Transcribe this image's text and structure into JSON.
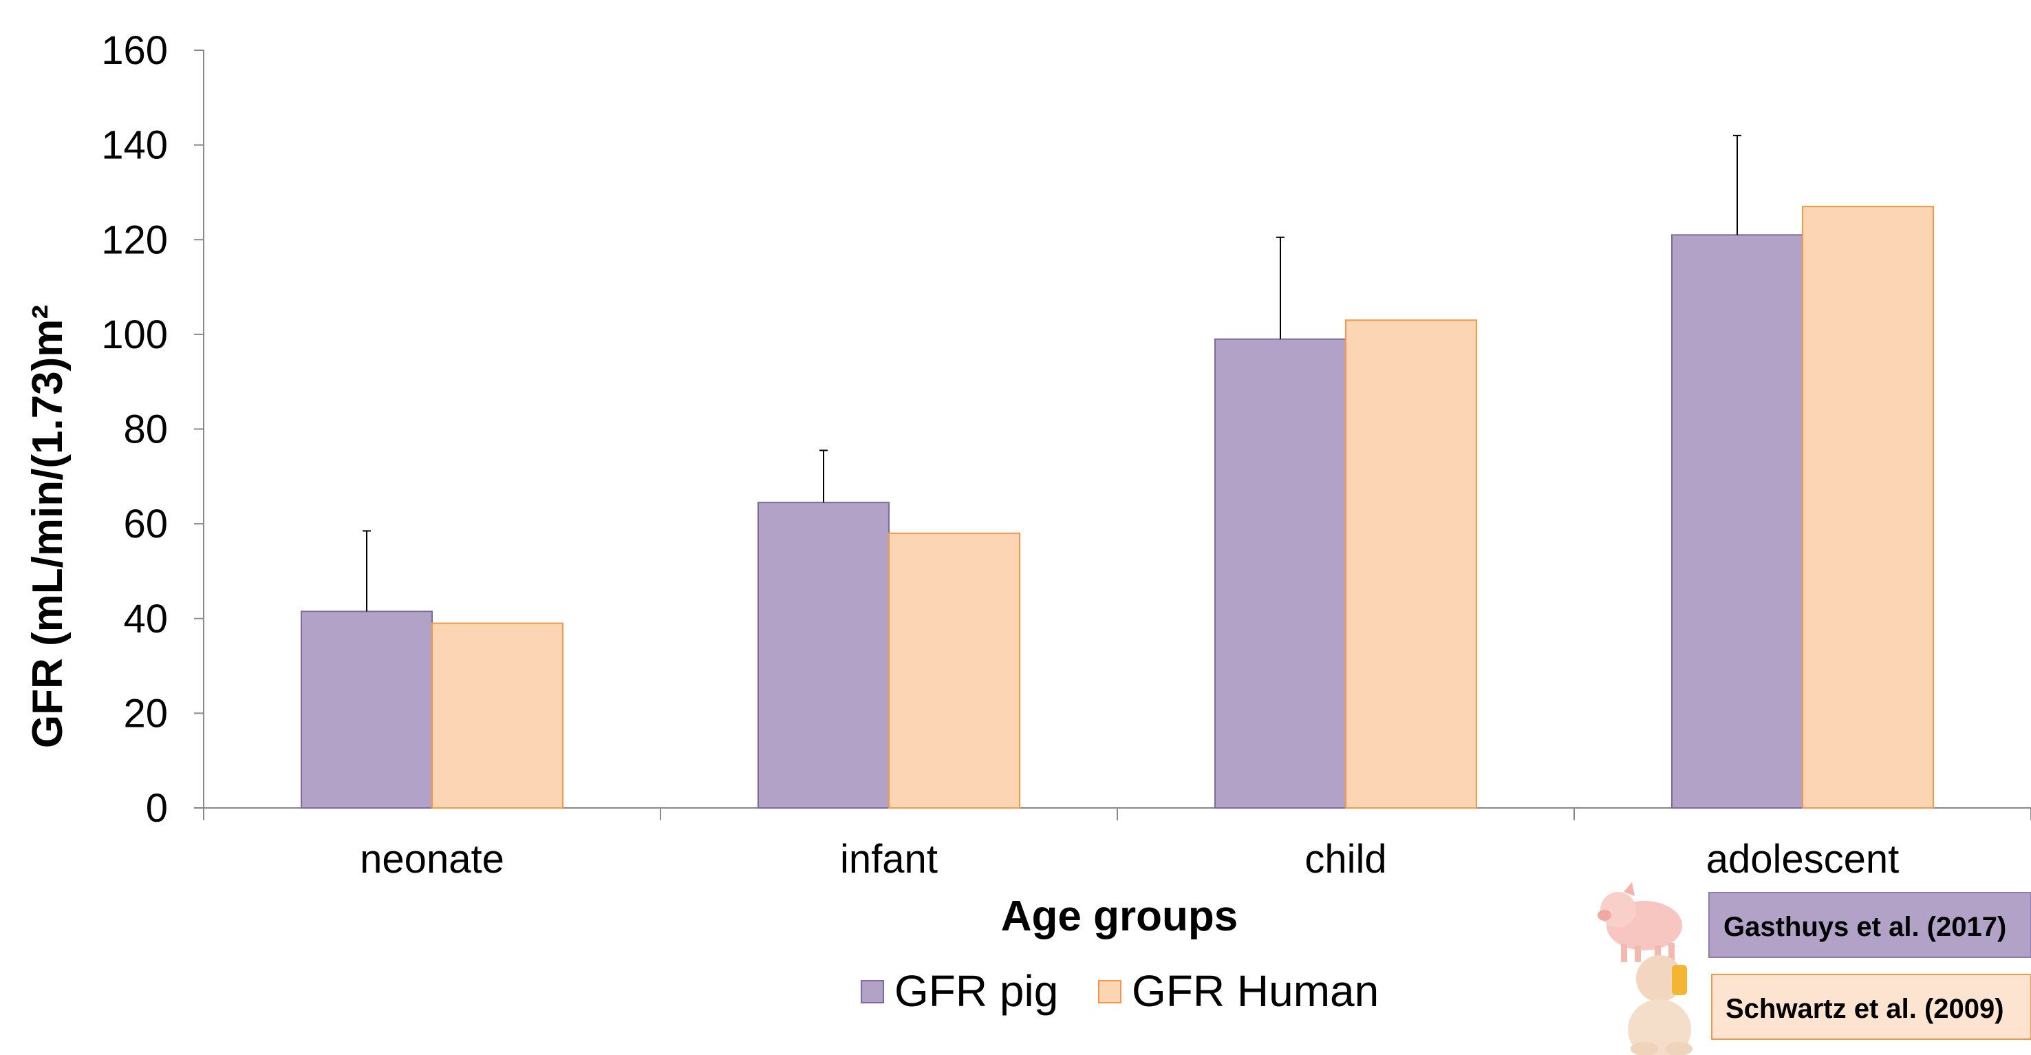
{
  "chart_data": {
    "type": "bar",
    "categories": [
      "neonate",
      "infant",
      "child",
      "adolescent"
    ],
    "series": [
      {
        "name": "GFR pig",
        "values": [
          41.5,
          64.5,
          99,
          121
        ],
        "error_upper": [
          58.5,
          75.5,
          120.5,
          142
        ],
        "color": "#B3A2C7",
        "stroke": "#7E6A9E"
      },
      {
        "name": "GFR Human",
        "values": [
          39,
          58,
          103,
          127
        ],
        "color": "#FCD5B5",
        "stroke": "#F79646"
      }
    ],
    "xlabel": "Age groups",
    "ylabel": "GFR (mL/min/(1.73)m²",
    "ylim": [
      0,
      160
    ],
    "yticks": [
      0,
      20,
      40,
      60,
      80,
      100,
      120,
      140,
      160
    ],
    "grid": false,
    "legend_position": "bottom-center",
    "references": [
      {
        "label": "Gasthuys et al. (2017)",
        "icon": "pig-icon",
        "color": "#B3A2C7"
      },
      {
        "label": "Schwartz et al. (2009)",
        "icon": "baby-icon",
        "color": "#FCE4D0"
      }
    ]
  }
}
